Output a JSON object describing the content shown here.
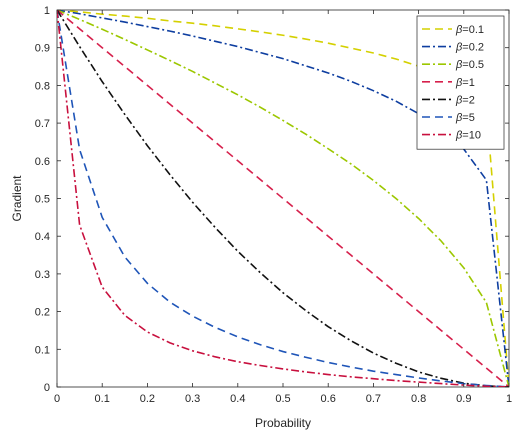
{
  "chart_data": {
    "type": "line",
    "title": "",
    "xlabel": "Probability",
    "ylabel": "Gradient",
    "xlim": [
      0,
      1
    ],
    "ylim": [
      0,
      1
    ],
    "xticks": [
      0,
      0.1,
      0.2,
      0.3,
      0.4,
      0.5,
      0.6,
      0.7,
      0.8,
      0.9,
      1
    ],
    "yticks": [
      0,
      0.1,
      0.2,
      0.3,
      0.4,
      0.5,
      0.6,
      0.7,
      0.8,
      0.9,
      1
    ],
    "xtick_labels": [
      "0",
      "0.1",
      "0.2",
      "0.3",
      "0.4",
      "0.5",
      "0.6",
      "0.7",
      "0.8",
      "0.9",
      "1"
    ],
    "ytick_labels": [
      "0",
      "0.1",
      "0.2",
      "0.3",
      "0.4",
      "0.5",
      "0.6",
      "0.7",
      "0.8",
      "0.9",
      "1"
    ],
    "grid": false,
    "box": true,
    "legend_position": "top-right",
    "x": [
      0,
      0.05,
      0.1,
      0.15,
      0.2,
      0.25,
      0.3,
      0.35,
      0.4,
      0.45,
      0.5,
      0.55,
      0.6,
      0.65,
      0.7,
      0.75,
      0.8,
      0.85,
      0.9,
      0.95,
      1
    ],
    "series": [
      {
        "name": "=0.1",
        "beta": "0.1",
        "color": "#d4d000",
        "dash": "dash",
        "values": [
          1.0,
          0.995,
          0.989,
          0.984,
          0.978,
          0.971,
          0.965,
          0.958,
          0.95,
          0.942,
          0.933,
          0.923,
          0.912,
          0.899,
          0.886,
          0.87,
          0.851,
          0.827,
          0.794,
          0.741,
          0.0
        ]
      },
      {
        "name": "=0.2",
        "beta": "0.2",
        "color": "#0e3ea0",
        "dash": "dashdot",
        "values": [
          1.0,
          0.99,
          0.979,
          0.968,
          0.956,
          0.944,
          0.931,
          0.917,
          0.903,
          0.887,
          0.871,
          0.852,
          0.833,
          0.811,
          0.786,
          0.758,
          0.725,
          0.684,
          0.631,
          0.549,
          0.0
        ]
      },
      {
        "name": "=0.5",
        "beta": "0.5",
        "color": "#9cc700",
        "dash": "dashdot",
        "values": [
          1.0,
          0.975,
          0.949,
          0.922,
          0.894,
          0.866,
          0.837,
          0.806,
          0.775,
          0.742,
          0.707,
          0.671,
          0.632,
          0.592,
          0.548,
          0.5,
          0.447,
          0.387,
          0.316,
          0.224,
          0.0
        ]
      },
      {
        "name": "=1",
        "beta": "1",
        "color": "#d6204c",
        "dash": "dash",
        "values": [
          1.0,
          0.95,
          0.9,
          0.85,
          0.8,
          0.75,
          0.7,
          0.65,
          0.6,
          0.55,
          0.5,
          0.45,
          0.4,
          0.35,
          0.3,
          0.25,
          0.2,
          0.15,
          0.1,
          0.05,
          0.0
        ]
      },
      {
        "name": "=2",
        "beta": "2",
        "color": "#111111",
        "dash": "dashdot",
        "values": [
          1.0,
          0.903,
          0.81,
          0.723,
          0.64,
          0.563,
          0.49,
          0.423,
          0.36,
          0.303,
          0.25,
          0.203,
          0.16,
          0.123,
          0.09,
          0.063,
          0.04,
          0.023,
          0.01,
          0.003,
          0.0
        ]
      },
      {
        "name": "=5",
        "beta": "5",
        "color": "#1f55b8",
        "dash": "dash",
        "values": [
          1.0,
          0.63,
          0.45,
          0.345,
          0.275,
          0.225,
          0.188,
          0.158,
          0.133,
          0.112,
          0.094,
          0.079,
          0.065,
          0.053,
          0.042,
          0.033,
          0.024,
          0.016,
          0.009,
          0.004,
          0.0
        ]
      },
      {
        "name": "=10",
        "beta": "10",
        "color": "#c8103e",
        "dash": "dashdot",
        "values": [
          1.0,
          0.43,
          0.265,
          0.19,
          0.146,
          0.117,
          0.096,
          0.08,
          0.067,
          0.057,
          0.048,
          0.04,
          0.033,
          0.027,
          0.022,
          0.017,
          0.013,
          0.009,
          0.005,
          0.002,
          0.0
        ]
      }
    ],
    "legend_symbol": "β"
  }
}
